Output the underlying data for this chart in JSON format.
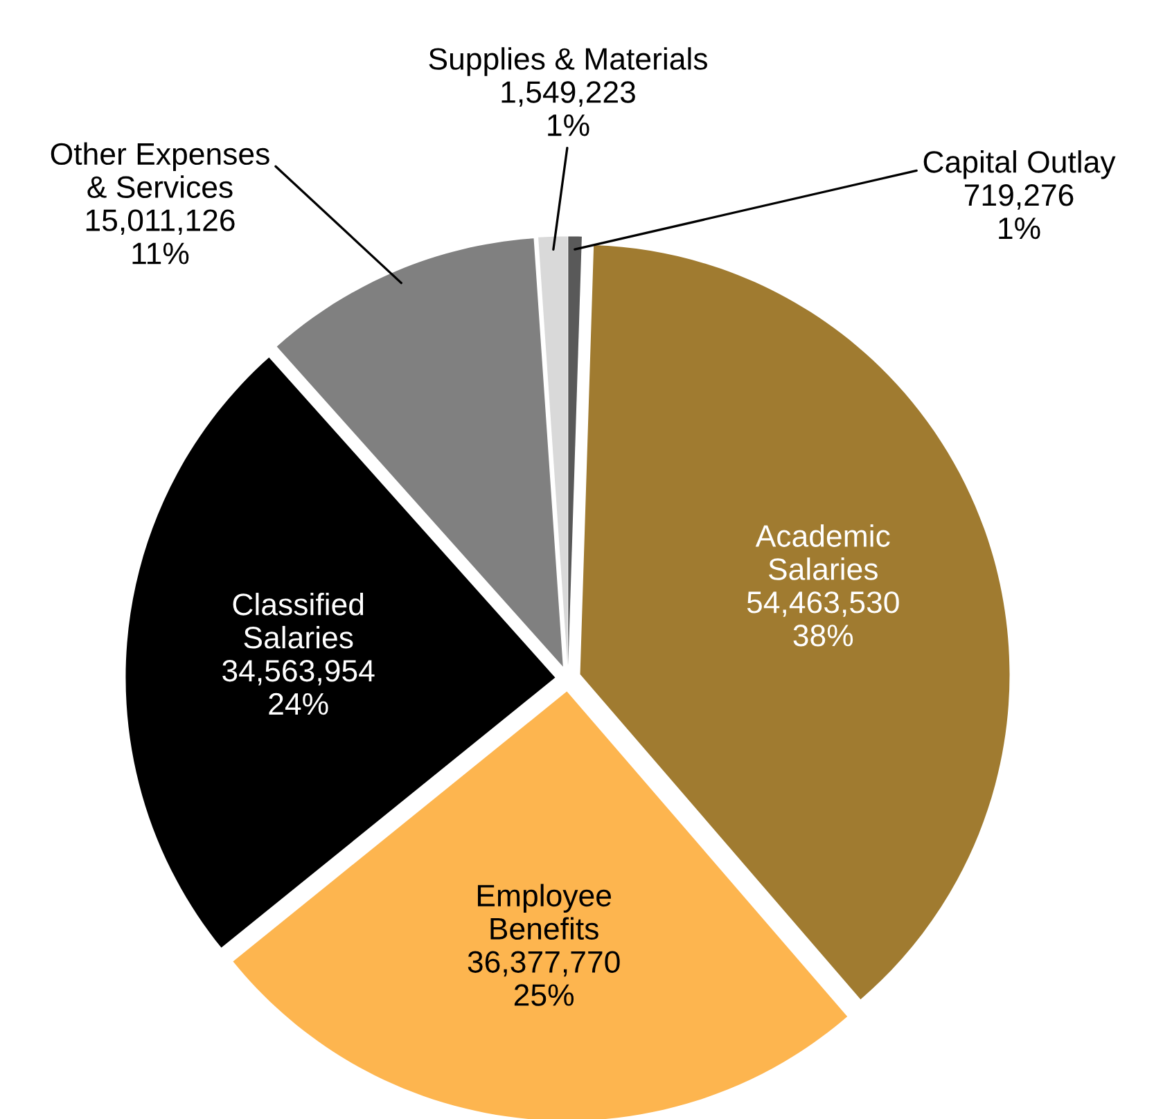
{
  "chart_data": {
    "type": "pie",
    "categories": [
      "Capital Outlay",
      "Academic\nSalaries",
      "Employee\nBenefits",
      "Classified\nSalaries",
      "Other Expenses\n& Services",
      "Supplies & Materials"
    ],
    "values": [
      719276,
      54463530,
      36377770,
      34563954,
      15011126,
      1549223
    ],
    "value_labels": [
      "719,276\n1%",
      "54,463,530\n38%",
      "36,377,770\n25%",
      "34,563,954\n24%",
      "15,011,126\n11%",
      "1,549,223\n1%"
    ],
    "colors": [
      "#595959",
      "#a07b30",
      "#fdb54f",
      "#000000",
      "#808080",
      "#d9d9d9"
    ],
    "legend": false
  }
}
